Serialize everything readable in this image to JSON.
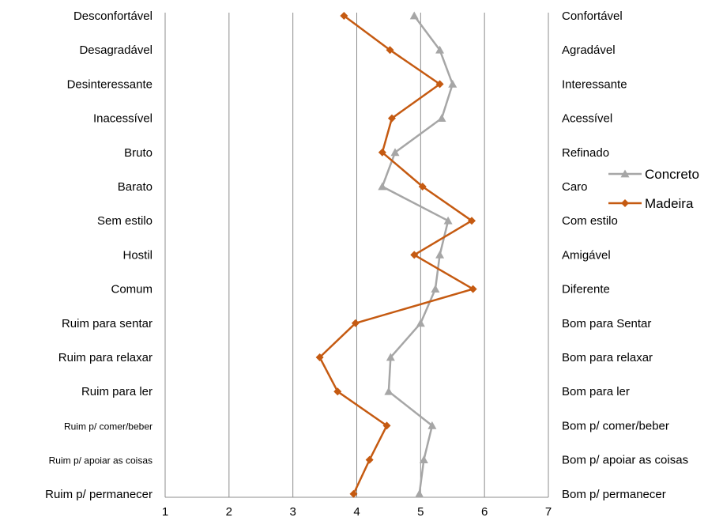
{
  "chart_data": {
    "type": "line",
    "orientation": "horizontal",
    "title": "",
    "xlabel": "",
    "ylabel": "",
    "xlim": [
      1,
      7
    ],
    "x_ticks": [
      "1",
      "2",
      "3",
      "4",
      "5",
      "6",
      "7"
    ],
    "grid": "vertical",
    "legend_position": "right",
    "left_labels": [
      "Desconfortável",
      "Desagradável",
      "Desinteressante",
      "Inacessível",
      "Bruto",
      "Barato",
      "Sem estilo",
      "Hostil",
      "Comum",
      "Ruim para sentar",
      "Ruim para relaxar",
      "Ruim para ler",
      "Ruim p/ comer/beber",
      "Ruim p/ apoiar as coisas",
      "Ruim p/ permanecer"
    ],
    "right_labels": [
      "Confortável",
      "Agradável",
      "Interessante",
      "Acessível",
      "Refinado",
      "Caro",
      "Com estilo",
      "Amigável",
      "Diferente",
      "Bom para Sentar",
      "Bom para relaxar",
      "Bom para ler",
      "Bom p/ comer/beber",
      "Bom p/ apoiar as coisas",
      "Bom p/ permanecer"
    ],
    "series": [
      {
        "name": "Concreto",
        "color": "#a6a6a6",
        "marker": "triangle",
        "values": [
          4.9,
          5.3,
          5.5,
          5.33,
          4.6,
          4.4,
          5.43,
          5.3,
          5.23,
          5.0,
          4.53,
          4.5,
          5.18,
          5.05,
          4.98
        ]
      },
      {
        "name": "Madeira",
        "color": "#c55a11",
        "marker": "diamond",
        "values": [
          3.8,
          4.52,
          5.3,
          4.55,
          4.4,
          5.03,
          5.8,
          4.9,
          5.82,
          3.98,
          3.42,
          3.7,
          4.47,
          4.2,
          3.95
        ]
      }
    ]
  }
}
